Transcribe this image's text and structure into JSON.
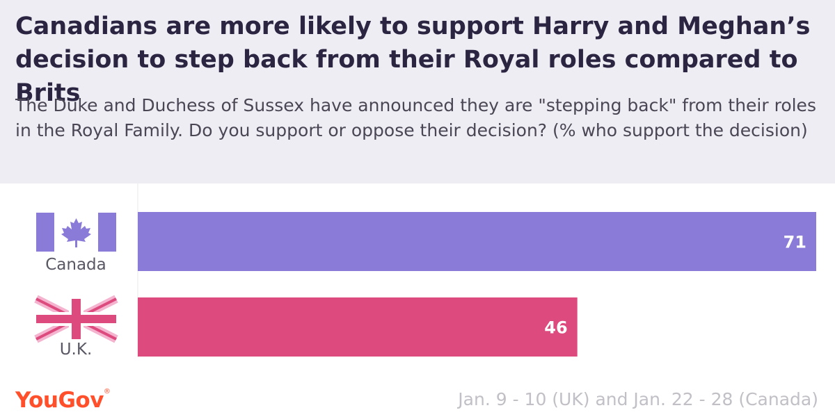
{
  "header": {
    "title": "Canadians are more likely to support Harry and Meghan’s decision to step back from their Royal roles compared to Brits",
    "subtitle": "The Duke and Duchess of Sussex have announced they are \"stepping back\" from their roles in the Royal Family. Do you support or oppose their decision? (% who support the decision)"
  },
  "chart_data": {
    "type": "bar",
    "orientation": "horizontal",
    "categories": [
      "Canada",
      "U.K."
    ],
    "values": [
      71,
      46
    ],
    "colors": [
      "#8b7bd8",
      "#dc4a7e"
    ],
    "icons": [
      "canada-flag-icon",
      "uk-flag-icon"
    ],
    "xlim": [
      0,
      71
    ],
    "grid": false
  },
  "footer": {
    "brand": "YouGov",
    "brand_mark": "®",
    "note": "Jan. 9 - 10 (UK) and Jan. 22 - 28 (Canada)"
  }
}
